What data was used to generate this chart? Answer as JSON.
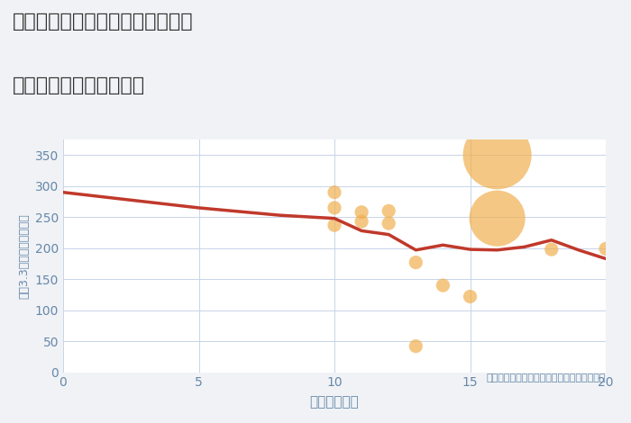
{
  "title_line1": "神奈川県川崎市中原区木月大町の",
  "title_line2": "駅距離別中古戸建て価格",
  "xlabel": "駅距離（分）",
  "ylabel": "坪（3.3㎡）単価（万円）",
  "annotation": "円の大きさは、取引のあった物件面積を示す",
  "bg_color": "#f0f2f5",
  "plot_bg_color": "#ffffff",
  "line_color": "#c0392b",
  "scatter_color": "#f0b050",
  "scatter_alpha": 0.7,
  "grid_color": "#c8d4e8",
  "text_color": "#6688aa",
  "title_color": "#333333",
  "xlim": [
    0,
    20
  ],
  "ylim": [
    0,
    375
  ],
  "xticks": [
    0,
    5,
    10,
    15,
    20
  ],
  "yticks": [
    0,
    50,
    100,
    150,
    200,
    250,
    300,
    350
  ],
  "line_x": [
    0,
    5,
    8,
    10,
    11,
    12,
    13,
    14,
    15,
    16,
    17,
    18,
    19,
    20
  ],
  "line_y": [
    290,
    265,
    253,
    248,
    228,
    222,
    197,
    205,
    198,
    197,
    202,
    213,
    197,
    183
  ],
  "scatter_x": [
    10,
    10,
    10,
    11,
    11,
    12,
    12,
    13,
    13,
    14,
    15,
    16,
    16,
    18,
    20
  ],
  "scatter_y": [
    290,
    265,
    237,
    243,
    258,
    240,
    260,
    177,
    42,
    140,
    122,
    350,
    248,
    198,
    199
  ],
  "scatter_size": [
    120,
    120,
    120,
    120,
    120,
    120,
    120,
    120,
    120,
    120,
    120,
    3000,
    2000,
    120,
    120
  ]
}
